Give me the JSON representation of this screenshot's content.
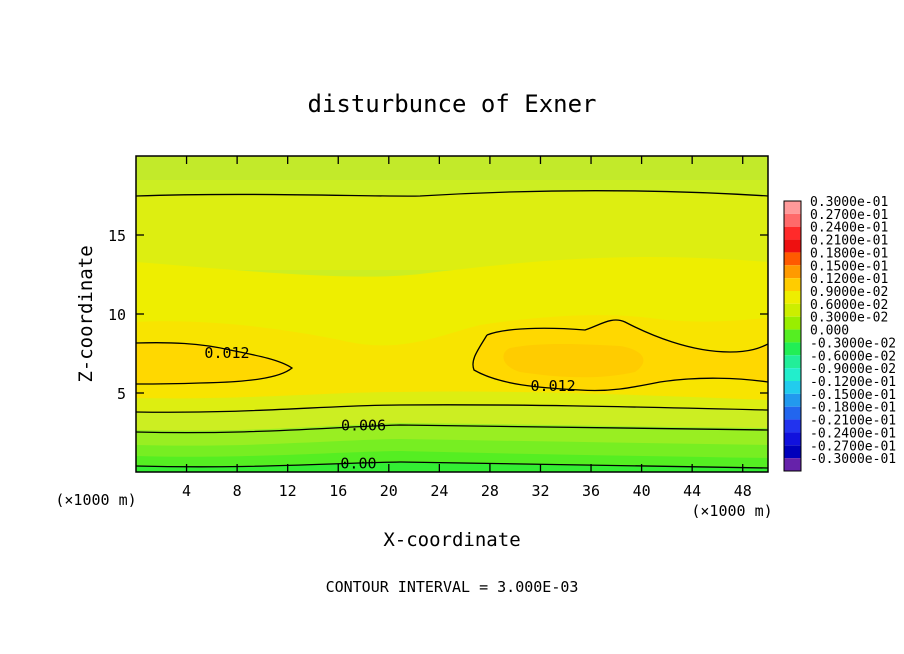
{
  "chart_data": {
    "type": "heatmap",
    "title": "disturbunce of Exner",
    "xlabel": "X-coordinate",
    "ylabel": "Z-coordinate",
    "x_unit": "(×1000 m)",
    "y_unit": "(×1000 m)",
    "xlim": [
      0,
      50
    ],
    "ylim": [
      0,
      20
    ],
    "x_ticks": [
      4,
      8,
      12,
      16,
      20,
      24,
      28,
      32,
      36,
      40,
      44,
      48
    ],
    "y_ticks": [
      5,
      10,
      15
    ],
    "footer": "CONTOUR INTERVAL = 3.000E-03",
    "colorbar": {
      "labels": [
        "0.3000e-01",
        "0.2700e-01",
        "0.2400e-01",
        "0.2100e-01",
        "0.1800e-01",
        "0.1500e-01",
        "0.1200e-01",
        "0.9000e-02",
        "0.6000e-02",
        "0.3000e-02",
        "0.000",
        "-0.3000e-02",
        "-0.6000e-02",
        "-0.9000e-02",
        "-0.1200e-01",
        "-0.1500e-01",
        "-0.1800e-01",
        "-0.2100e-01",
        "-0.2400e-01",
        "-0.2700e-01",
        "-0.3000e-01"
      ],
      "colors": [
        "#ff9a9a",
        "#ff6a6a",
        "#ff2a2a",
        "#ee1010",
        "#ff5a00",
        "#ff9a00",
        "#ffcc00",
        "#eeee00",
        "#ccee00",
        "#99ee00",
        "#55ee22",
        "#22ee55",
        "#22ee99",
        "#22eecc",
        "#22ccee",
        "#2299ee",
        "#2266ee",
        "#2233ee",
        "#1111dd",
        "#0000bb",
        "#6622aa"
      ]
    },
    "contour_labels": [
      {
        "text": "0.012",
        "x": 7.2,
        "z": 7.6
      },
      {
        "text": "0.012",
        "x": 33.0,
        "z": 5.5
      },
      {
        "text": "0.006",
        "x": 18.0,
        "z": 3.0
      },
      {
        "text": "0.00",
        "x": 17.6,
        "z": 0.6
      }
    ]
  }
}
